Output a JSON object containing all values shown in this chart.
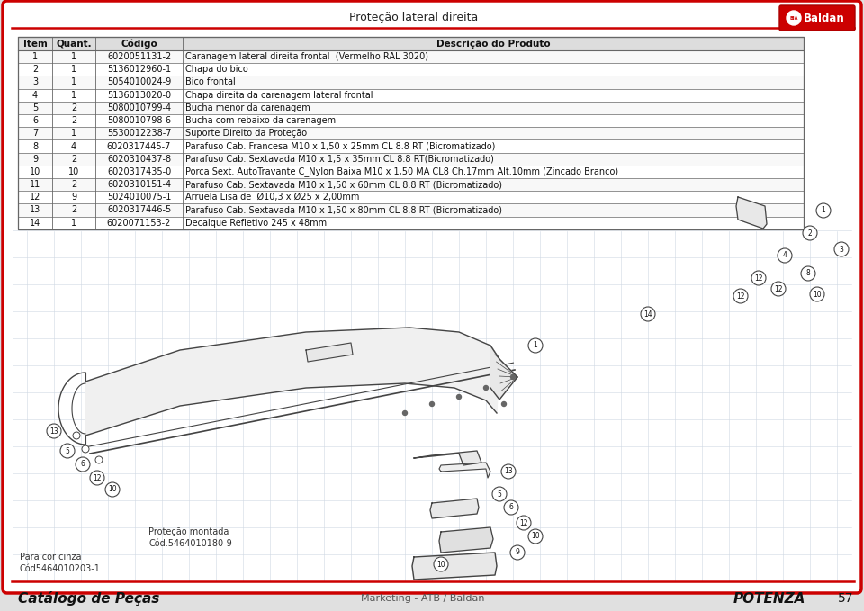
{
  "title": "Proteção lateral direita",
  "page_bg": "#e8e8e8",
  "border_color": "#cc0000",
  "table_header": [
    "Item",
    "Quant.",
    "Código",
    "Descrição do Produto"
  ],
  "rows": [
    [
      "1",
      "1",
      "6020051131-2",
      "Caranagem lateral direita frontal  (Vermelho RAL 3020)"
    ],
    [
      "2",
      "1",
      "5136012960-1",
      "Chapa do bico"
    ],
    [
      "3",
      "1",
      "5054010024-9",
      "Bico frontal"
    ],
    [
      "4",
      "1",
      "5136013020-0",
      "Chapa direita da carenagem lateral frontal"
    ],
    [
      "5",
      "2",
      "5080010799-4",
      "Bucha menor da carenagem"
    ],
    [
      "6",
      "2",
      "5080010798-6",
      "Bucha com rebaixo da carenagem"
    ],
    [
      "7",
      "1",
      "5530012238-7",
      "Suporte Direito da Proteção"
    ],
    [
      "8",
      "4",
      "6020317445-7",
      "Parafuso Cab. Francesa M10 x 1,50 x 25mm CL 8.8 RT (Bicromatizado)"
    ],
    [
      "9",
      "2",
      "6020310437-8",
      "Parafuso Cab. Sextavada M10 x 1,5 x 35mm CL 8.8 RT(Bicromatizado)"
    ],
    [
      "10",
      "10",
      "6020317435-0",
      "Porca Sext. AutoTravante C_Nylon Baixa M10 x 1,50 MA CL8 Ch.17mm Alt.10mm (Zincado Branco)"
    ],
    [
      "11",
      "2",
      "6020310151-4",
      "Parafuso Cab. Sextavada M10 x 1,50 x 60mm CL 8.8 RT (Bicromatizado)"
    ],
    [
      "12",
      "9",
      "5024010075-1",
      "Arruela Lisa de  Ø10,3 x Ø25 x 2,00mm"
    ],
    [
      "13",
      "2",
      "6020317446-5",
      "Parafuso Cab. Sextavada M10 x 1,50 x 80mm CL 8.8 RT (Bicromatizado)"
    ],
    [
      "14",
      "1",
      "6020071153-2",
      "Decalque Refletivo 245 x 48mm"
    ]
  ],
  "footer_left": "Catálogo de Peças",
  "footer_center": "Marketing - ATB / Baldan",
  "footer_right": "POTENZA",
  "footer_page": "57",
  "note1": "Proteção montada",
  "note2": "Cód.5464010180-9",
  "note3": "Para cor cinza",
  "note4": "Cód5464010203-1",
  "table_line_color": "#666666",
  "grid_color": "#d0d8e4",
  "draw_color": "#444444"
}
